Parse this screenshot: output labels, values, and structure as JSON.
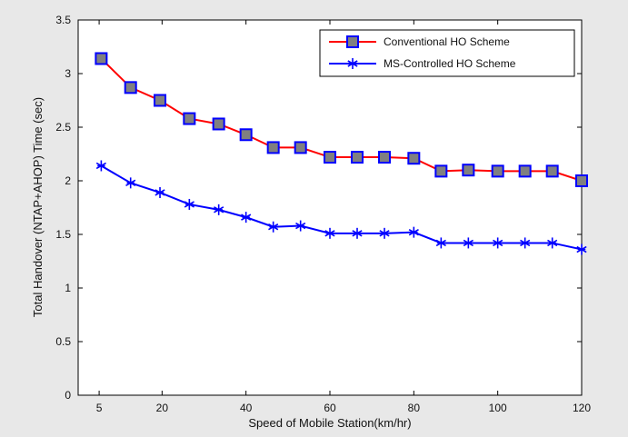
{
  "chart_data": {
    "type": "line",
    "title": "",
    "xlabel": "Speed of Mobile Station(km/hr)",
    "ylabel": "Total Handover (NTAP+AHOP) Time (sec)",
    "xlim": [
      0,
      120
    ],
    "ylim": [
      0,
      3.5
    ],
    "xticks": [
      5,
      20,
      40,
      60,
      80,
      100,
      120
    ],
    "yticks": [
      0,
      0.5,
      1,
      1.5,
      2,
      2.5,
      3,
      3.5
    ],
    "grid": false,
    "legend_position": "top-right",
    "x": [
      5.5,
      12.5,
      19.5,
      26.5,
      33.5,
      40,
      46.5,
      53,
      60,
      66.5,
      73,
      80,
      86.5,
      93,
      100,
      106.5,
      113,
      120
    ],
    "series": [
      {
        "name": "Conventional HO Scheme",
        "color": "#ff0000",
        "marker": "square",
        "values": [
          3.14,
          2.87,
          2.75,
          2.58,
          2.53,
          2.43,
          2.31,
          2.31,
          2.22,
          2.22,
          2.22,
          2.21,
          2.09,
          2.1,
          2.09,
          2.09,
          2.09,
          2.0
        ]
      },
      {
        "name": "MS-Controlled HO Scheme",
        "color": "#0000ff",
        "marker": "asterisk",
        "values": [
          2.14,
          1.98,
          1.89,
          1.78,
          1.73,
          1.66,
          1.57,
          1.58,
          1.51,
          1.51,
          1.51,
          1.52,
          1.42,
          1.42,
          1.42,
          1.42,
          1.42,
          1.36
        ]
      }
    ]
  },
  "ui": {
    "figure_background": "#e8e8e8",
    "axes_background": "#ffffff",
    "marker_fill": "#808080"
  }
}
